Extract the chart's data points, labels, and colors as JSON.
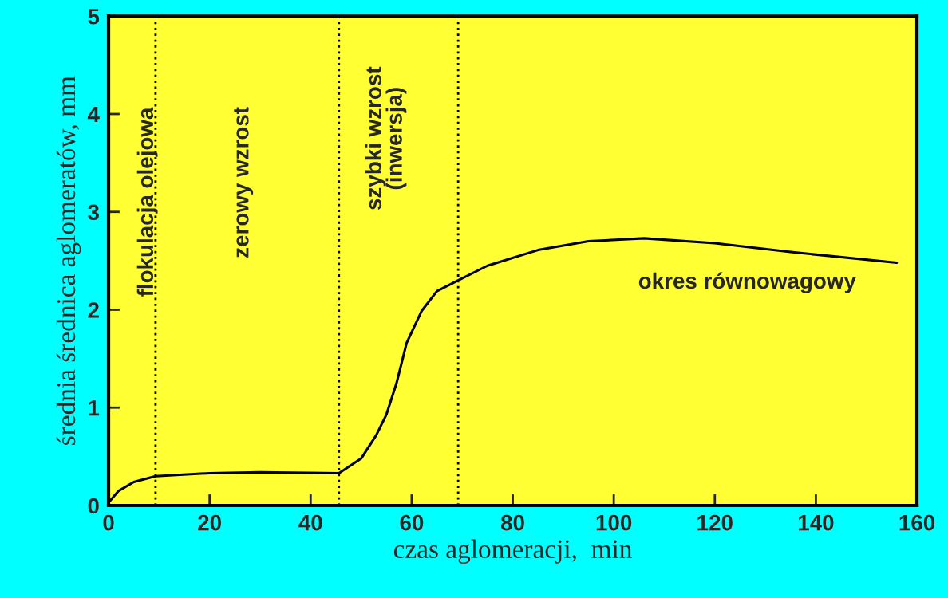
{
  "chart_data": {
    "type": "line",
    "xlabel": "czas aglomeracji,  min",
    "ylabel": "średnia średnica aglomeratów, mm",
    "series": [
      {
        "color": "#000000",
        "x": [
          0,
          2,
          5,
          9.3,
          20,
          30,
          45.6,
          50,
          53,
          55,
          57,
          59,
          62,
          65,
          69.2,
          75,
          85,
          95,
          106,
          120,
          135,
          156
        ],
        "values": [
          0.03,
          0.15,
          0.24,
          0.3,
          0.33,
          0.34,
          0.33,
          0.48,
          0.72,
          0.93,
          1.25,
          1.66,
          1.99,
          2.19,
          2.3,
          2.45,
          2.61,
          2.7,
          2.73,
          2.68,
          2.59,
          2.48
        ]
      }
    ],
    "xlim": [
      0,
      160
    ],
    "xticks": [
      0,
      20,
      40,
      60,
      80,
      100,
      120,
      140,
      160
    ],
    "ylim": [
      0,
      5
    ],
    "yticks": [
      0,
      1,
      2,
      3,
      4,
      5
    ],
    "ref_lines": [
      {
        "axis": "x",
        "value": 9.3,
        "color": "#000000",
        "line_style": "dotted"
      },
      {
        "axis": "x",
        "value": 45.6,
        "color": "#000000",
        "line_style": "dotted"
      },
      {
        "axis": "x",
        "value": 69.2,
        "color": "#000000",
        "line_style": "dotted"
      }
    ],
    "annotations": [
      "flokulacja olejowa",
      "zerowy wzrost",
      "szybki wzrost\n(inwersja)",
      "okres równowagowy"
    ],
    "grid": false,
    "legend": false,
    "marker": "none",
    "line_style": "solid"
  }
}
